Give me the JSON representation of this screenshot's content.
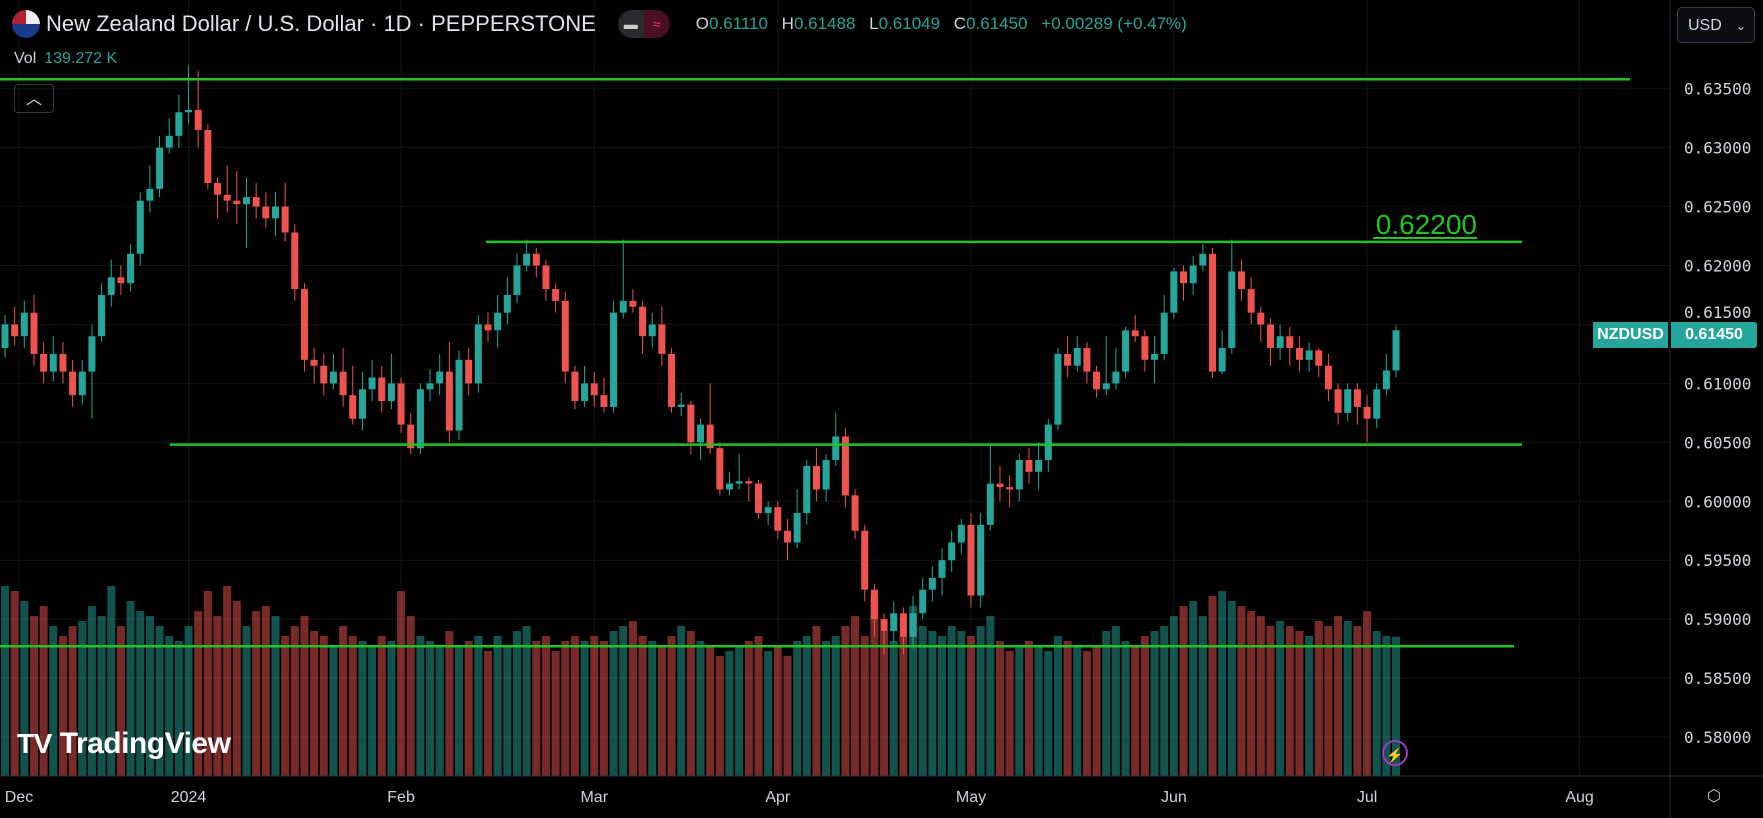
{
  "header": {
    "title": "New Zealand Dollar / U.S. Dollar · 1D · PEPPERSTONE",
    "flag_icon": "nz-us-flag-icon",
    "ohlc": {
      "o_label": "O",
      "o": "0.61110",
      "h_label": "H",
      "h": "0.61488",
      "l_label": "L",
      "l": "0.61049",
      "c_label": "C",
      "c": "0.61450",
      "change": "+0.00289 (+0.47%)"
    },
    "vol_label": "Vol",
    "vol_value": "139.272 K"
  },
  "currency_button": "USD",
  "symbol_tag": {
    "symbol": "NZDUSD",
    "price": "0.61450"
  },
  "level_label": "0.62200",
  "brand": "TradingView",
  "colors": {
    "up": "#26a69a",
    "down": "#ef5350",
    "level_line": "#22c322",
    "background": "#000000"
  },
  "chart_data": {
    "type": "candlestick",
    "symbol": "NZDUSD",
    "interval": "1D",
    "y_ticks": [
      "0.63500",
      "0.63000",
      "0.62500",
      "0.62000",
      "0.61500",
      "0.61000",
      "0.60500",
      "0.60000",
      "0.59500",
      "0.59000",
      "0.58500",
      "0.58000"
    ],
    "ylim": [
      0.5765,
      0.637
    ],
    "x_ticks": [
      {
        "label": "Dec",
        "index": 0
      },
      {
        "label": "2024",
        "index": 19
      },
      {
        "label": "Feb",
        "index": 41
      },
      {
        "label": "Mar",
        "index": 61
      },
      {
        "label": "Apr",
        "index": 80
      },
      {
        "label": "May",
        "index": 100
      },
      {
        "label": "Jun",
        "index": 121
      },
      {
        "label": "Jul",
        "index": 141
      },
      {
        "label": "Aug",
        "index": 163
      }
    ],
    "horizontal_levels": [
      0.6358,
      0.622,
      0.6048,
      0.5877
    ],
    "open": [
      0.613,
      0.615,
      0.614,
      0.616,
      0.6125,
      0.611,
      0.6125,
      0.611,
      0.609,
      0.611,
      0.614,
      0.6175,
      0.619,
      0.6185,
      0.621,
      0.6255,
      0.6265,
      0.63,
      0.631,
      0.633,
      0.6332,
      0.6315,
      0.627,
      0.626,
      0.6255,
      0.6252,
      0.6258,
      0.625,
      0.624,
      0.625,
      0.6228,
      0.618,
      0.612,
      0.6115,
      0.61,
      0.611,
      0.609,
      0.607,
      0.6095,
      0.6105,
      0.6085,
      0.61,
      0.6065,
      0.6045,
      0.6095,
      0.61,
      0.611,
      0.606,
      0.612,
      0.61,
      0.615,
      0.6145,
      0.616,
      0.6175,
      0.62,
      0.621,
      0.62,
      0.618,
      0.617,
      0.611,
      0.6085,
      0.61,
      0.609,
      0.608,
      0.616,
      0.617,
      0.6165,
      0.614,
      0.615,
      0.6125,
      0.608,
      0.6082,
      0.605,
      0.6065,
      0.6045,
      0.601,
      0.6015,
      0.6017,
      0.6015,
      0.599,
      0.5995,
      0.5975,
      0.5965,
      0.599,
      0.603,
      0.601,
      0.6035,
      0.6055,
      0.6005,
      0.5975,
      0.5925,
      0.59,
      0.589,
      0.5905,
      0.5885,
      0.5905,
      0.5925,
      0.5935,
      0.595,
      0.5965,
      0.598,
      0.592,
      0.598,
      0.6015,
      0.6012,
      0.601,
      0.6035,
      0.6025,
      0.6035,
      0.6065,
      0.6125,
      0.6115,
      0.613,
      0.611,
      0.6095,
      0.61,
      0.611,
      0.6145,
      0.614,
      0.612,
      0.6125,
      0.616,
      0.6195,
      0.6185,
      0.62,
      0.621,
      0.611,
      0.613,
      0.6195,
      0.618,
      0.616,
      0.615,
      0.613,
      0.614,
      0.613,
      0.612,
      0.6128,
      0.6115,
      0.6095,
      0.6075,
      0.6095,
      0.608,
      0.607,
      0.6095,
      0.6111
    ],
    "high": [
      0.6158,
      0.6165,
      0.617,
      0.6175,
      0.6135,
      0.614,
      0.6135,
      0.612,
      0.612,
      0.615,
      0.6185,
      0.6205,
      0.62,
      0.6218,
      0.6262,
      0.6285,
      0.631,
      0.6325,
      0.6345,
      0.637,
      0.6365,
      0.632,
      0.6275,
      0.6285,
      0.628,
      0.6275,
      0.627,
      0.6262,
      0.6262,
      0.627,
      0.6235,
      0.6185,
      0.613,
      0.6125,
      0.6125,
      0.613,
      0.6115,
      0.611,
      0.612,
      0.6115,
      0.6125,
      0.6105,
      0.6075,
      0.61,
      0.6112,
      0.6125,
      0.6135,
      0.6128,
      0.613,
      0.6158,
      0.616,
      0.6175,
      0.619,
      0.621,
      0.6222,
      0.6215,
      0.6205,
      0.6185,
      0.6178,
      0.6115,
      0.6115,
      0.611,
      0.6105,
      0.617,
      0.6222,
      0.618,
      0.617,
      0.616,
      0.6165,
      0.613,
      0.6092,
      0.6085,
      0.607,
      0.61,
      0.605,
      0.6025,
      0.604,
      0.602,
      0.6018,
      0.6,
      0.6,
      0.5985,
      0.601,
      0.6035,
      0.6045,
      0.604,
      0.6075,
      0.6062,
      0.601,
      0.598,
      0.593,
      0.5905,
      0.5915,
      0.591,
      0.592,
      0.5935,
      0.5945,
      0.596,
      0.5975,
      0.5985,
      0.599,
      0.599,
      0.6048,
      0.603,
      0.6022,
      0.604,
      0.6045,
      0.605,
      0.607,
      0.613,
      0.614,
      0.614,
      0.6135,
      0.6115,
      0.614,
      0.613,
      0.6148,
      0.6158,
      0.6145,
      0.614,
      0.6175,
      0.6198,
      0.62,
      0.6208,
      0.6218,
      0.6215,
      0.6145,
      0.6222,
      0.6205,
      0.619,
      0.6165,
      0.6155,
      0.615,
      0.6148,
      0.614,
      0.6135,
      0.613,
      0.6125,
      0.61,
      0.61,
      0.61,
      0.609,
      0.61,
      0.6125,
      0.6149
    ],
    "low": [
      0.6122,
      0.6132,
      0.613,
      0.6115,
      0.61,
      0.6102,
      0.61,
      0.608,
      0.6082,
      0.607,
      0.6135,
      0.6165,
      0.6175,
      0.6178,
      0.62,
      0.6245,
      0.6258,
      0.6295,
      0.63,
      0.632,
      0.63,
      0.6265,
      0.624,
      0.6245,
      0.6235,
      0.6215,
      0.624,
      0.6232,
      0.6225,
      0.622,
      0.617,
      0.611,
      0.61,
      0.609,
      0.6095,
      0.608,
      0.6065,
      0.606,
      0.6085,
      0.6075,
      0.6078,
      0.6058,
      0.604,
      0.604,
      0.6085,
      0.609,
      0.605,
      0.6052,
      0.609,
      0.6092,
      0.6135,
      0.613,
      0.615,
      0.6168,
      0.6195,
      0.619,
      0.617,
      0.616,
      0.61,
      0.6078,
      0.608,
      0.608,
      0.6075,
      0.6075,
      0.6155,
      0.616,
      0.6125,
      0.613,
      0.6115,
      0.6075,
      0.6072,
      0.604,
      0.6035,
      0.604,
      0.6005,
      0.6005,
      0.601,
      0.6,
      0.5985,
      0.598,
      0.5968,
      0.595,
      0.596,
      0.598,
      0.6,
      0.6,
      0.603,
      0.5995,
      0.5968,
      0.5915,
      0.5885,
      0.587,
      0.588,
      0.587,
      0.5875,
      0.59,
      0.5915,
      0.592,
      0.594,
      0.5955,
      0.591,
      0.591,
      0.5975,
      0.6,
      0.5995,
      0.6,
      0.6015,
      0.601,
      0.6025,
      0.606,
      0.6105,
      0.611,
      0.61,
      0.6088,
      0.609,
      0.6095,
      0.6105,
      0.6135,
      0.611,
      0.61,
      0.612,
      0.6155,
      0.617,
      0.6175,
      0.6195,
      0.6105,
      0.6108,
      0.6125,
      0.617,
      0.615,
      0.6135,
      0.6115,
      0.612,
      0.6115,
      0.611,
      0.611,
      0.6105,
      0.6085,
      0.6065,
      0.6068,
      0.6065,
      0.605,
      0.6062,
      0.609,
      0.6105
    ],
    "close": [
      0.615,
      0.614,
      0.616,
      0.6125,
      0.611,
      0.6125,
      0.611,
      0.609,
      0.611,
      0.614,
      0.6175,
      0.619,
      0.6185,
      0.621,
      0.6255,
      0.6265,
      0.63,
      0.631,
      0.633,
      0.6332,
      0.6315,
      0.627,
      0.626,
      0.6255,
      0.6252,
      0.6258,
      0.625,
      0.624,
      0.625,
      0.6228,
      0.618,
      0.612,
      0.6115,
      0.61,
      0.611,
      0.609,
      0.607,
      0.6095,
      0.6105,
      0.6085,
      0.61,
      0.6065,
      0.6045,
      0.6095,
      0.61,
      0.611,
      0.606,
      0.612,
      0.61,
      0.615,
      0.6145,
      0.616,
      0.6175,
      0.62,
      0.621,
      0.62,
      0.618,
      0.617,
      0.611,
      0.6085,
      0.61,
      0.609,
      0.608,
      0.616,
      0.617,
      0.6165,
      0.614,
      0.615,
      0.6125,
      0.608,
      0.6082,
      0.605,
      0.6065,
      0.6045,
      0.601,
      0.6015,
      0.6017,
      0.6015,
      0.599,
      0.5995,
      0.5975,
      0.5965,
      0.599,
      0.603,
      0.601,
      0.6035,
      0.6055,
      0.6005,
      0.5975,
      0.5925,
      0.59,
      0.589,
      0.5905,
      0.5885,
      0.5905,
      0.5925,
      0.5935,
      0.595,
      0.5965,
      0.598,
      0.592,
      0.598,
      0.6015,
      0.6012,
      0.601,
      0.6035,
      0.6025,
      0.6035,
      0.6065,
      0.6125,
      0.6115,
      0.613,
      0.611,
      0.6095,
      0.61,
      0.611,
      0.6145,
      0.614,
      0.612,
      0.6125,
      0.616,
      0.6195,
      0.6185,
      0.62,
      0.621,
      0.611,
      0.613,
      0.6195,
      0.618,
      0.616,
      0.615,
      0.613,
      0.614,
      0.613,
      0.612,
      0.6128,
      0.6115,
      0.6095,
      0.6075,
      0.6095,
      0.608,
      0.607,
      0.6095,
      0.6111,
      0.6145
    ],
    "volume_k": [
      190,
      185,
      175,
      160,
      170,
      150,
      140,
      150,
      155,
      170,
      160,
      190,
      150,
      175,
      165,
      160,
      150,
      140,
      135,
      150,
      165,
      185,
      160,
      190,
      175,
      150,
      165,
      170,
      160,
      140,
      150,
      160,
      145,
      140,
      130,
      150,
      140,
      135,
      130,
      140,
      135,
      185,
      160,
      140,
      135,
      130,
      145,
      130,
      135,
      140,
      125,
      140,
      130,
      145,
      150,
      135,
      140,
      125,
      135,
      140,
      135,
      140,
      135,
      145,
      150,
      155,
      140,
      135,
      130,
      140,
      150,
      145,
      135,
      130,
      120,
      125,
      130,
      135,
      140,
      125,
      130,
      120,
      135,
      140,
      150,
      135,
      140,
      150,
      160,
      140,
      180,
      145,
      135,
      140,
      170,
      150,
      145,
      140,
      150,
      145,
      140,
      150,
      160,
      135,
      125,
      130,
      135,
      130,
      125,
      140,
      135,
      130,
      125,
      130,
      145,
      150,
      135,
      130,
      140,
      145,
      150,
      160,
      170,
      175,
      160,
      180,
      185,
      175,
      170,
      165,
      160,
      150,
      155,
      150,
      145,
      140,
      155,
      150,
      160,
      155,
      150,
      165,
      145,
      140,
      139.272
    ]
  }
}
